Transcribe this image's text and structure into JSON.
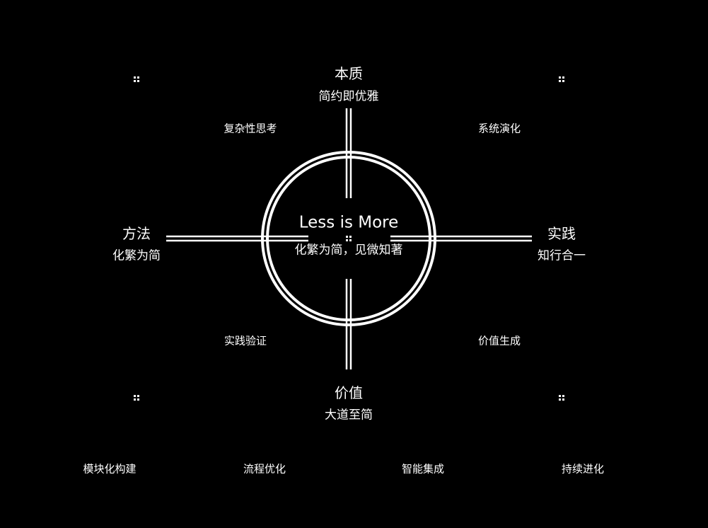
{
  "center": {
    "title": "Less is More",
    "subtitle": "化繁为简，见微知著"
  },
  "poles": {
    "top": {
      "title": "本质",
      "subtitle": "简约即优雅"
    },
    "bottom": {
      "title": "价值",
      "subtitle": "大道至简"
    },
    "left": {
      "title": "方法",
      "subtitle": "化繁为简"
    },
    "right": {
      "title": "实践",
      "subtitle": "知行合一"
    }
  },
  "quadrants": {
    "top_left": "复杂性思考",
    "top_right": "系统演化",
    "bottom_left": "实践验证",
    "bottom_right": "价值生成"
  },
  "footer": [
    "模块化构建",
    "流程优化",
    "智能集成",
    "持续进化"
  ],
  "colors": {
    "background": "#000000",
    "foreground": "#ffffff"
  }
}
